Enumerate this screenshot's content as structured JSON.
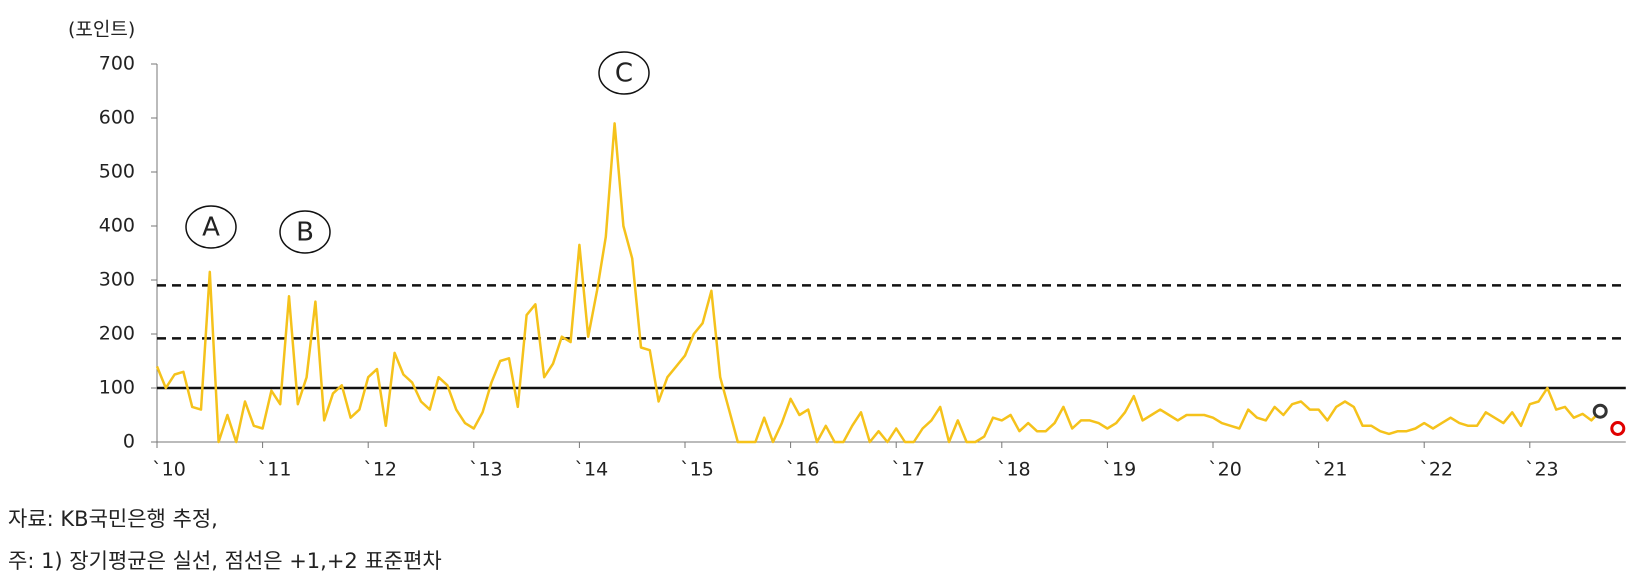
{
  "chart_data": {
    "type": "line",
    "y_label": "(포인트)",
    "categories": [
      "`10",
      null,
      null,
      null,
      null,
      null,
      null,
      null,
      null,
      null,
      null,
      null,
      "`11",
      null,
      null,
      null,
      null,
      null,
      null,
      null,
      null,
      null,
      null,
      null,
      "`12",
      null,
      null,
      null,
      null,
      null,
      null,
      null,
      null,
      null,
      null,
      null,
      "`13",
      null,
      null,
      null,
      null,
      null,
      null,
      null,
      null,
      null,
      null,
      null,
      "`14",
      null,
      null,
      null,
      null,
      null,
      null,
      null,
      null,
      null,
      null,
      null,
      "`15",
      null,
      null,
      null,
      null,
      null,
      null,
      null,
      null,
      null,
      null,
      null,
      "`16",
      null,
      null,
      null,
      null,
      null,
      null,
      null,
      null,
      null,
      null,
      null,
      "`17",
      null,
      null,
      null,
      null,
      null,
      null,
      null,
      null,
      null,
      null,
      null,
      "`18",
      null,
      null,
      null,
      null,
      null,
      null,
      null,
      null,
      null,
      null,
      null,
      "`19",
      null,
      null,
      null,
      null,
      null,
      null,
      null,
      null,
      null,
      null,
      null,
      "`20",
      null,
      null,
      null,
      null,
      null,
      null,
      null,
      null,
      null,
      null,
      null,
      "`21",
      null,
      null,
      null,
      null,
      null,
      null,
      null,
      null,
      null,
      null,
      null,
      "`22",
      null,
      null,
      null,
      null,
      null,
      null,
      null,
      null,
      null,
      null,
      null,
      "`23",
      null,
      null,
      null,
      null,
      null,
      null,
      null,
      null,
      null,
      null
    ],
    "values": [
      140,
      100,
      125,
      130,
      65,
      60,
      315,
      0,
      50,
      0,
      75,
      30,
      25,
      95,
      70,
      270,
      70,
      120,
      260,
      40,
      90,
      105,
      45,
      60,
      120,
      135,
      30,
      165,
      125,
      110,
      75,
      60,
      120,
      105,
      60,
      35,
      25,
      55,
      110,
      150,
      155,
      65,
      235,
      255,
      120,
      145,
      195,
      185,
      365,
      195,
      280,
      380,
      590,
      400,
      340,
      175,
      170,
      75,
      120,
      140,
      160,
      200,
      220,
      280,
      120,
      60,
      0,
      0,
      0,
      45,
      0,
      35,
      80,
      50,
      60,
      0,
      30,
      0,
      0,
      30,
      55,
      0,
      20,
      0,
      25,
      0,
      0,
      25,
      40,
      65,
      0,
      40,
      0,
      0,
      10,
      45,
      40,
      50,
      20,
      35,
      20,
      20,
      35,
      65,
      25,
      40,
      40,
      35,
      25,
      35,
      55,
      85,
      40,
      50,
      60,
      50,
      40,
      50,
      50,
      50,
      45,
      35,
      30,
      25,
      60,
      45,
      40,
      65,
      50,
      70,
      75,
      60,
      60,
      40,
      65,
      75,
      65,
      30,
      30,
      20,
      15,
      20,
      20,
      25,
      35,
      25,
      35,
      45,
      35,
      30,
      30,
      55,
      45,
      35,
      55,
      30,
      70,
      75,
      100,
      60,
      65,
      45,
      52,
      40,
      57,
      null,
      null
    ],
    "color": "#f5c21b",
    "ylim": [
      0,
      700
    ],
    "yticks": [
      0,
      100,
      200,
      300,
      400,
      500,
      600,
      700
    ],
    "reference_lines": [
      {
        "value": 100,
        "style": "solid"
      },
      {
        "value": 192,
        "style": "dashed"
      },
      {
        "value": 290,
        "style": "dashed"
      }
    ],
    "highlights": [
      {
        "index": 164,
        "value": 57,
        "color": "#333333"
      },
      {
        "index": 166,
        "value": 25,
        "color": "#e00000"
      }
    ],
    "annotations": [
      "A",
      "B",
      "C"
    ],
    "notes": [
      "자료: KB국민은행 추정,",
      "주: 1) 장기평균은 실선, 점선은 +1,+2 표준편차"
    ]
  }
}
